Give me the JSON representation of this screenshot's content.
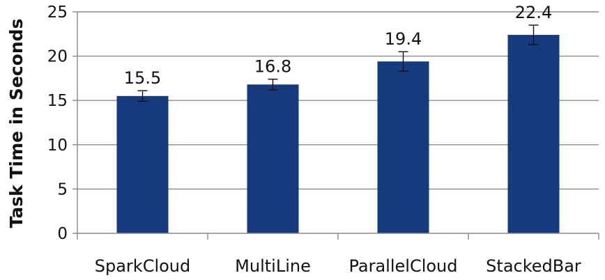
{
  "chart_data": {
    "type": "bar",
    "title": "",
    "xlabel": "",
    "ylabel": "Task Time in Seconds",
    "categories": [
      "SparkCloud",
      "MultiLine",
      "ParallelCloud",
      "StackedBar"
    ],
    "values": [
      15.5,
      16.8,
      19.4,
      22.4
    ],
    "data_labels": [
      "15.5",
      "16.8",
      "19.4",
      "22.4"
    ],
    "error": [
      0.6,
      0.6,
      1.1,
      1.1
    ],
    "ylim": [
      0,
      25
    ],
    "yticks": [
      0,
      5,
      10,
      15,
      20,
      25
    ],
    "ytick_labels": [
      "0",
      "5",
      "10",
      "15",
      "20",
      "25"
    ],
    "grid": true,
    "bar_color": "#163a7e",
    "grid_color": "#888888",
    "axis_color": "#888888"
  }
}
